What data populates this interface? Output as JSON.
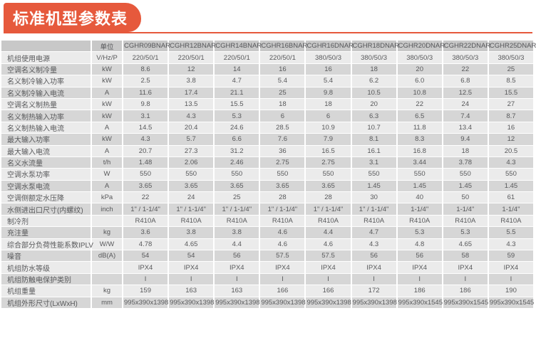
{
  "title": "标准机型参数表",
  "colors": {
    "accent": "#E6593C",
    "header_bg": "#C8C8C8",
    "row_light": "#EBEBEB",
    "row_dark": "#D6D6D6",
    "text": "#58595B"
  },
  "table": {
    "unit_header": "单位",
    "models": [
      "CGHR09BNAR",
      "CGHR12BNAR",
      "CGHR14BNAR",
      "CGHR16BNAR",
      "CGHR16DNAR",
      "CGHR18DNAR",
      "CGHR20DNAR",
      "CGHR22DNAR",
      "CGHR25DNAR"
    ],
    "rows": [
      {
        "label": "机组使用电源",
        "unit": "V/Hz/P",
        "values": [
          "220/50/1",
          "220/50/1",
          "220/50/1",
          "220/50/1",
          "380/50/3",
          "380/50/3",
          "380/50/3",
          "380/50/3",
          "380/50/3"
        ]
      },
      {
        "label": "空调名义制冷量",
        "unit": "kW",
        "values": [
          "8.6",
          "12",
          "14",
          "16",
          "16",
          "18",
          "20",
          "22",
          "25"
        ]
      },
      {
        "label": "名义制冷输入功率",
        "unit": "kW",
        "values": [
          "2.5",
          "3.8",
          "4.7",
          "5.4",
          "5.4",
          "6.2",
          "6.0",
          "6.8",
          "8.5"
        ]
      },
      {
        "label": "名义制冷输入电流",
        "unit": "A",
        "values": [
          "11.6",
          "17.4",
          "21.1",
          "25",
          "9.8",
          "10.5",
          "10.8",
          "12.5",
          "15.5"
        ]
      },
      {
        "label": "空调名义制热量",
        "unit": "kW",
        "values": [
          "9.8",
          "13.5",
          "15.5",
          "18",
          "18",
          "20",
          "22",
          "24",
          "27"
        ]
      },
      {
        "label": "名义制热输入功率",
        "unit": "kW",
        "values": [
          "3.1",
          "4.3",
          "5.3",
          "6",
          "6",
          "6.3",
          "6.5",
          "7.4",
          "8.7"
        ]
      },
      {
        "label": "名义制热输入电流",
        "unit": "A",
        "values": [
          "14.5",
          "20.4",
          "24.6",
          "28.5",
          "10.9",
          "10.7",
          "11.8",
          "13.4",
          "16"
        ]
      },
      {
        "label": "最大输入功率",
        "unit": "kW",
        "values": [
          "4.3",
          "5.7",
          "6.6",
          "7.6",
          "7.9",
          "8.1",
          "8.3",
          "9.4",
          "12"
        ]
      },
      {
        "label": "最大输入电流",
        "unit": "A",
        "values": [
          "20.7",
          "27.3",
          "31.2",
          "36",
          "16.5",
          "16.1",
          "16.8",
          "18",
          "20.5"
        ]
      },
      {
        "label": "名义水流量",
        "unit": "t/h",
        "values": [
          "1.48",
          "2.06",
          "2.46",
          "2.75",
          "2.75",
          "3.1",
          "3.44",
          "3.78",
          "4.3"
        ]
      },
      {
        "label": "空调水泵功率",
        "unit": "W",
        "values": [
          "550",
          "550",
          "550",
          "550",
          "550",
          "550",
          "550",
          "550",
          "550"
        ]
      },
      {
        "label": "空调水泵电流",
        "unit": "A",
        "values": [
          "3.65",
          "3.65",
          "3.65",
          "3.65",
          "3.65",
          "1.45",
          "1.45",
          "1.45",
          "1.45"
        ]
      },
      {
        "label": "空调侧额定水压降",
        "unit": "kPa",
        "values": [
          "22",
          "24",
          "25",
          "28",
          "28",
          "30",
          "40",
          "50",
          "61"
        ]
      },
      {
        "label": "水侧进出口尺寸(内螺纹)",
        "unit": "inch",
        "values": [
          "1\" / 1-1/4\"",
          "1\" / 1-1/4\"",
          "1\" / 1-1/4\"",
          "1\" / 1-1/4\"",
          "1\" / 1-1/4\"",
          "1\" / 1-1/4\"",
          "1-1/4\"",
          "1-1/4\"",
          "1-1/4\""
        ]
      },
      {
        "label": "制冷剂",
        "unit": "",
        "values": [
          "R410A",
          "R410A",
          "R410A",
          "R410A",
          "R410A",
          "R410A",
          "R410A",
          "R410A",
          "R410A"
        ]
      },
      {
        "label": "充注量",
        "unit": "kg",
        "values": [
          "3.6",
          "3.8",
          "3.8",
          "4.6",
          "4.4",
          "4.7",
          "5.3",
          "5.3",
          "5.5"
        ]
      },
      {
        "label": "综合部分负荷性能系数IPLV",
        "unit": "W/W",
        "values": [
          "4.78",
          "4.65",
          "4.4",
          "4.6",
          "4.6",
          "4.3",
          "4.8",
          "4.65",
          "4.3"
        ]
      },
      {
        "label": "噪音",
        "unit": "dB(A)",
        "values": [
          "54",
          "54",
          "56",
          "57.5",
          "57.5",
          "56",
          "56",
          "58",
          "59"
        ]
      },
      {
        "label": "机组防水等级",
        "unit": "",
        "values": [
          "IPX4",
          "IPX4",
          "IPX4",
          "IPX4",
          "IPX4",
          "IPX4",
          "IPX4",
          "IPX4",
          "IPX4"
        ]
      },
      {
        "label": "机组防触电保护类别",
        "unit": "",
        "values": [
          "I",
          "I",
          "I",
          "I",
          "I",
          "I",
          "I",
          "I",
          "I"
        ]
      },
      {
        "label": "机组重量",
        "unit": "kg",
        "values": [
          "159",
          "163",
          "163",
          "166",
          "166",
          "172",
          "186",
          "186",
          "190"
        ]
      },
      {
        "label": "机组外形尺寸(LxWxH)",
        "unit": "mm",
        "values": [
          "995x390x1398",
          "995x390x1398",
          "995x390x1398",
          "995x390x1398",
          "995x390x1398",
          "995x390x1398",
          "995x390x1545",
          "995x390x1545",
          "995x390x1545"
        ]
      }
    ]
  }
}
